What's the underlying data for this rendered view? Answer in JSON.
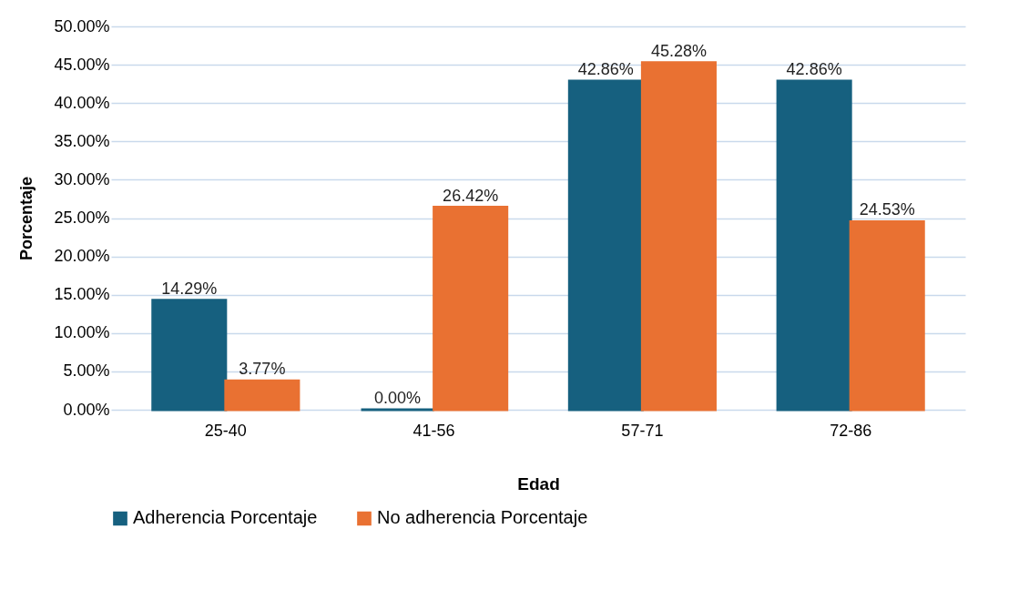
{
  "chart_data": {
    "type": "bar",
    "xlabel": "Edad",
    "ylabel": "Porcentaje",
    "categories": [
      "25-40",
      "41-56",
      "57-71",
      "72-86"
    ],
    "series": [
      {
        "name": "Adherencia Porcentaje",
        "color": "#16607f",
        "values": [
          14.29,
          0.0,
          42.86,
          42.86
        ],
        "value_labels": [
          "14.29%",
          "0.00%",
          "42.86%",
          "42.86%"
        ]
      },
      {
        "name": "No adherencia Porcentaje",
        "color": "#e97132",
        "values": [
          3.77,
          26.42,
          45.28,
          24.53
        ],
        "value_labels": [
          "3.77%",
          "26.42%",
          "45.28%",
          "24.53%"
        ]
      }
    ],
    "ylim": [
      0,
      50
    ],
    "yticks": [
      {
        "value": 0,
        "label": "0.00%"
      },
      {
        "value": 5,
        "label": "5.00%"
      },
      {
        "value": 10,
        "label": "10.00%"
      },
      {
        "value": 15,
        "label": "15.00%"
      },
      {
        "value": 20,
        "label": "20.00%"
      },
      {
        "value": 25,
        "label": "25.00%"
      },
      {
        "value": 30,
        "label": "30.00%"
      },
      {
        "value": 35,
        "label": "35.00%"
      },
      {
        "value": 40,
        "label": "40.00%"
      },
      {
        "value": 45,
        "label": "45.00%"
      },
      {
        "value": 50,
        "label": "50.00%"
      }
    ],
    "grid": "y",
    "legend": "bottom"
  }
}
